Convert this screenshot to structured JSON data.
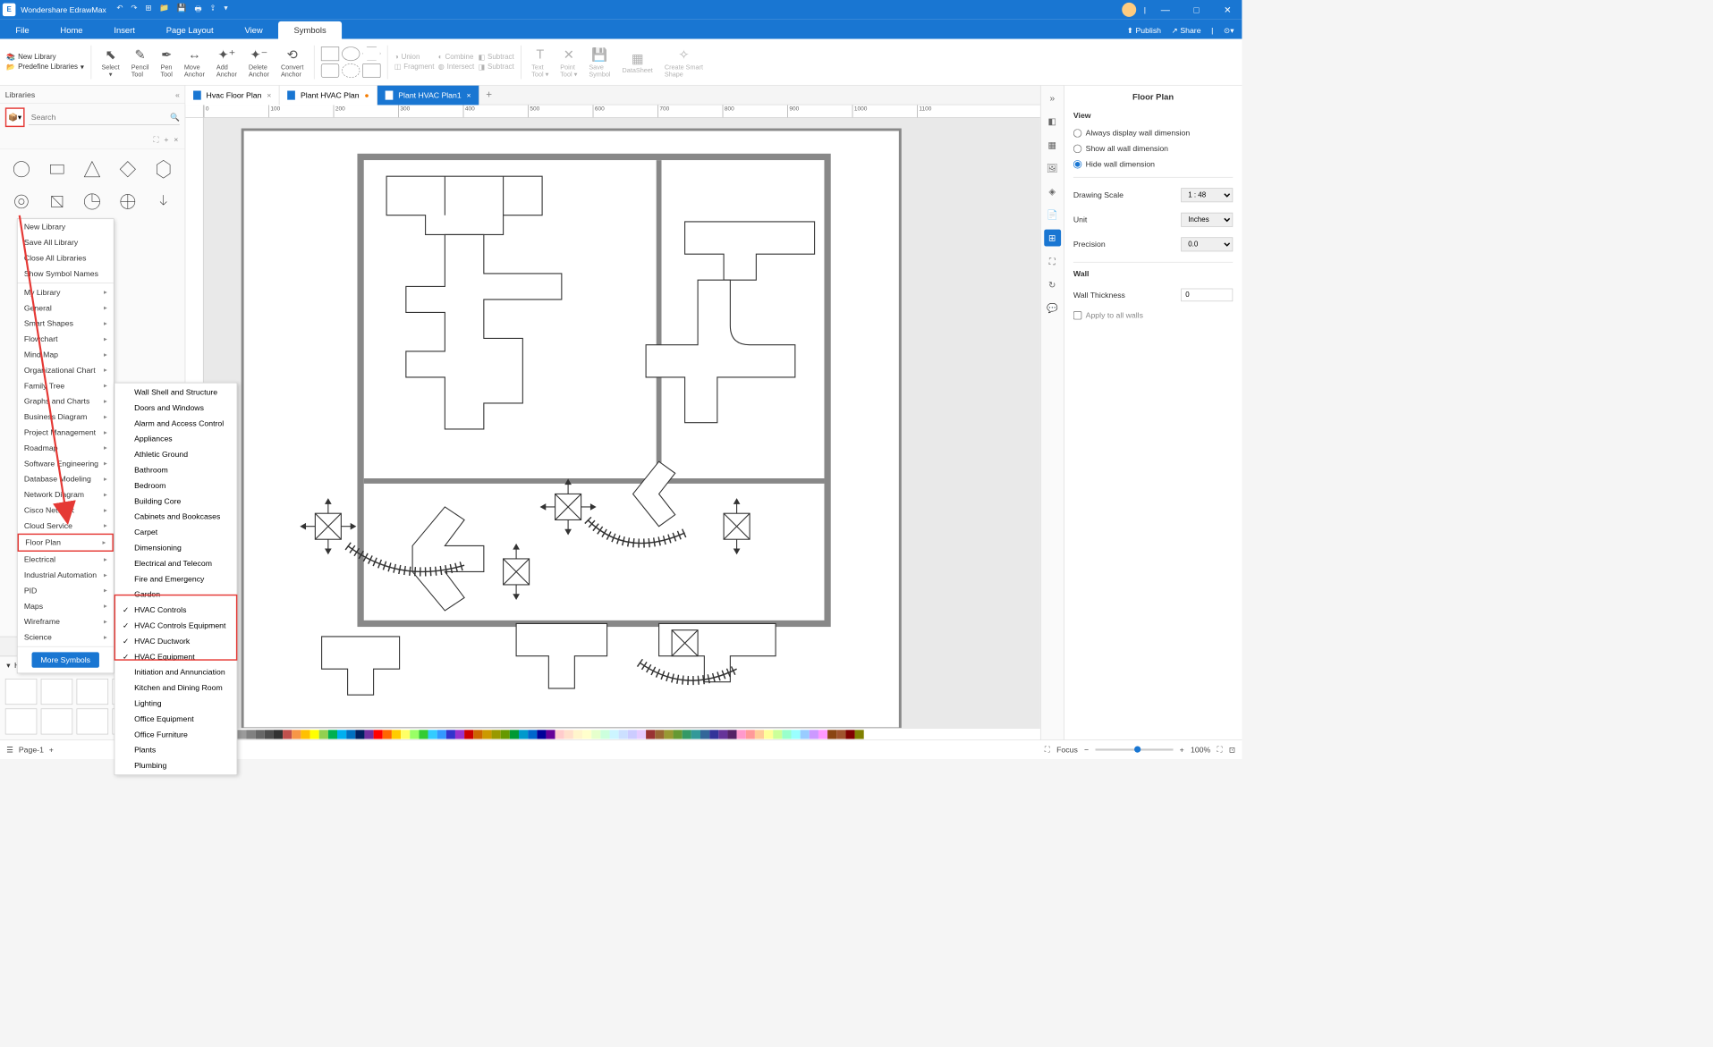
{
  "app": {
    "name": "Wondershare EdrawMax"
  },
  "titlebar": {
    "publish": "Publish",
    "share": "Share"
  },
  "menubar": {
    "items": [
      "File",
      "Home",
      "Insert",
      "Page Layout",
      "View",
      "Symbols"
    ],
    "active": 5,
    "publish": "Publish",
    "share": "Share"
  },
  "ribbon": {
    "new_library": "New Library",
    "predefine": "Predefine Libraries",
    "select": "Select",
    "pencil": "Pencil\nTool",
    "pen": "Pen\nTool",
    "move": "Move\nAnchor",
    "add": "Add\nAnchor",
    "delete": "Delete\nAnchor",
    "convert": "Convert\nAnchor",
    "union": "Union",
    "combine": "Combine",
    "subtract": "Subtract",
    "fragment": "Fragment",
    "intersect": "Intersect",
    "subtract2": "Subtract",
    "text": "Text\nTool ▾",
    "point": "Point\nTool ▾",
    "save": "Save\nSymbol",
    "datasheet": "DataSheet",
    "smart": "Create Smart\nShape"
  },
  "libraries": {
    "header": "Libraries",
    "search_ph": "Search",
    "section1": "",
    "ductwork": "HVAC Ductwork"
  },
  "dropdown": {
    "items": [
      {
        "label": "New Library",
        "sub": false
      },
      {
        "label": "Save All Library",
        "sub": false
      },
      {
        "label": "Close All Libraries",
        "sub": false
      },
      {
        "label": "Show Symbol Names",
        "sub": false
      },
      {
        "label": "My Library",
        "sub": true
      },
      {
        "label": "General",
        "sub": true
      },
      {
        "label": "Smart Shapes",
        "sub": true
      },
      {
        "label": "Flowchart",
        "sub": true
      },
      {
        "label": "Mind Map",
        "sub": true
      },
      {
        "label": "Organizational Chart",
        "sub": true
      },
      {
        "label": "Family Tree",
        "sub": true
      },
      {
        "label": "Graphs and Charts",
        "sub": true
      },
      {
        "label": "Business Diagram",
        "sub": true
      },
      {
        "label": "Project Management",
        "sub": true
      },
      {
        "label": "Roadmap",
        "sub": true
      },
      {
        "label": "Software Engineering",
        "sub": true
      },
      {
        "label": "Database Modeling",
        "sub": true
      },
      {
        "label": "Network Diagram",
        "sub": true
      },
      {
        "label": "Cisco Network",
        "sub": true
      },
      {
        "label": "Cloud Service",
        "sub": true
      },
      {
        "label": "Floor Plan",
        "sub": true,
        "hl": true
      },
      {
        "label": "Electrical",
        "sub": true
      },
      {
        "label": "Industrial Automation",
        "sub": true
      },
      {
        "label": "PID",
        "sub": true
      },
      {
        "label": "Maps",
        "sub": true
      },
      {
        "label": "Wireframe",
        "sub": true
      },
      {
        "label": "Science",
        "sub": true
      }
    ],
    "more": "More Symbols"
  },
  "submenu": {
    "items": [
      {
        "label": "Wall Shell and Structure"
      },
      {
        "label": "Doors and Windows"
      },
      {
        "label": "Alarm and Access Control"
      },
      {
        "label": "Appliances"
      },
      {
        "label": "Athletic Ground"
      },
      {
        "label": "Bathroom"
      },
      {
        "label": "Bedroom"
      },
      {
        "label": "Building Core"
      },
      {
        "label": "Cabinets and Bookcases"
      },
      {
        "label": "Carpet"
      },
      {
        "label": "Dimensioning"
      },
      {
        "label": "Electrical and Telecom"
      },
      {
        "label": "Fire and Emergency"
      },
      {
        "label": "Garden"
      },
      {
        "label": "HVAC Controls",
        "chk": true
      },
      {
        "label": "HVAC Controls Equipment",
        "chk": true
      },
      {
        "label": "HVAC Ductwork",
        "chk": true
      },
      {
        "label": "HVAC Equipment",
        "chk": true
      },
      {
        "label": "Initiation and Annunciation"
      },
      {
        "label": "Kitchen and Dining Room"
      },
      {
        "label": "Lighting"
      },
      {
        "label": "Office Equipment"
      },
      {
        "label": "Office Furniture"
      },
      {
        "label": "Plants"
      },
      {
        "label": "Plumbing"
      }
    ]
  },
  "tabs": {
    "items": [
      {
        "label": "Hvac Floor Plan",
        "active": false,
        "dirty": false
      },
      {
        "label": "Plant HVAC Plan",
        "active": false,
        "dirty": true
      },
      {
        "label": "Plant HVAC Plan1",
        "active": true,
        "dirty": false
      }
    ]
  },
  "ruler": [
    "0",
    "100",
    "200",
    "300",
    "400",
    "500",
    "600",
    "700",
    "800",
    "900",
    "1000",
    "1100"
  ],
  "panel": {
    "title": "Floor Plan",
    "view": "View",
    "r1": "Always display wall dimension",
    "r2": "Show all wall dimension",
    "r3": "Hide wall dimension",
    "scale": "Drawing Scale",
    "scale_val": "1 : 48",
    "unit": "Unit",
    "unit_val": "Inches",
    "precision": "Precision",
    "precision_val": "0.0",
    "wall": "Wall",
    "thickness": "Wall Thickness",
    "thickness_val": "0",
    "apply": "Apply to all walls"
  },
  "status": {
    "page": "Page-1",
    "plus": "+",
    "focus": "Focus",
    "zoom": "100%",
    "minus": "−",
    "plus2": "+"
  },
  "palette": [
    "#ffffff",
    "#000000",
    "#e9e9e9",
    "#cfcfcf",
    "#b5b5b5",
    "#9b9b9b",
    "#818181",
    "#676767",
    "#4d4d4d",
    "#333333",
    "#c0504d",
    "#f79646",
    "#ffc000",
    "#ffff00",
    "#92d050",
    "#00b050",
    "#00b0f0",
    "#0070c0",
    "#002060",
    "#7030a0",
    "#ff0000",
    "#ff6600",
    "#ffcc00",
    "#ffff66",
    "#99ff66",
    "#33cc33",
    "#33ccff",
    "#3399ff",
    "#3333cc",
    "#9933cc",
    "#cc0000",
    "#cc6600",
    "#cc9900",
    "#999900",
    "#669900",
    "#009933",
    "#0099cc",
    "#0066cc",
    "#000099",
    "#660099",
    "#ffcccc",
    "#ffe0cc",
    "#fff5cc",
    "#ffffcc",
    "#e6ffcc",
    "#ccffdd",
    "#ccf5ff",
    "#cce0ff",
    "#ccccff",
    "#e6ccff",
    "#993333",
    "#996633",
    "#999933",
    "#669933",
    "#339966",
    "#339999",
    "#336699",
    "#333399",
    "#663399",
    "#552266",
    "#ff99cc",
    "#ff9999",
    "#ffcc99",
    "#ffff99",
    "#ccff99",
    "#99ffcc",
    "#99ffff",
    "#99ccff",
    "#cc99ff",
    "#ff99ff",
    "#8b4513",
    "#a0522d",
    "#800000",
    "#808000"
  ]
}
